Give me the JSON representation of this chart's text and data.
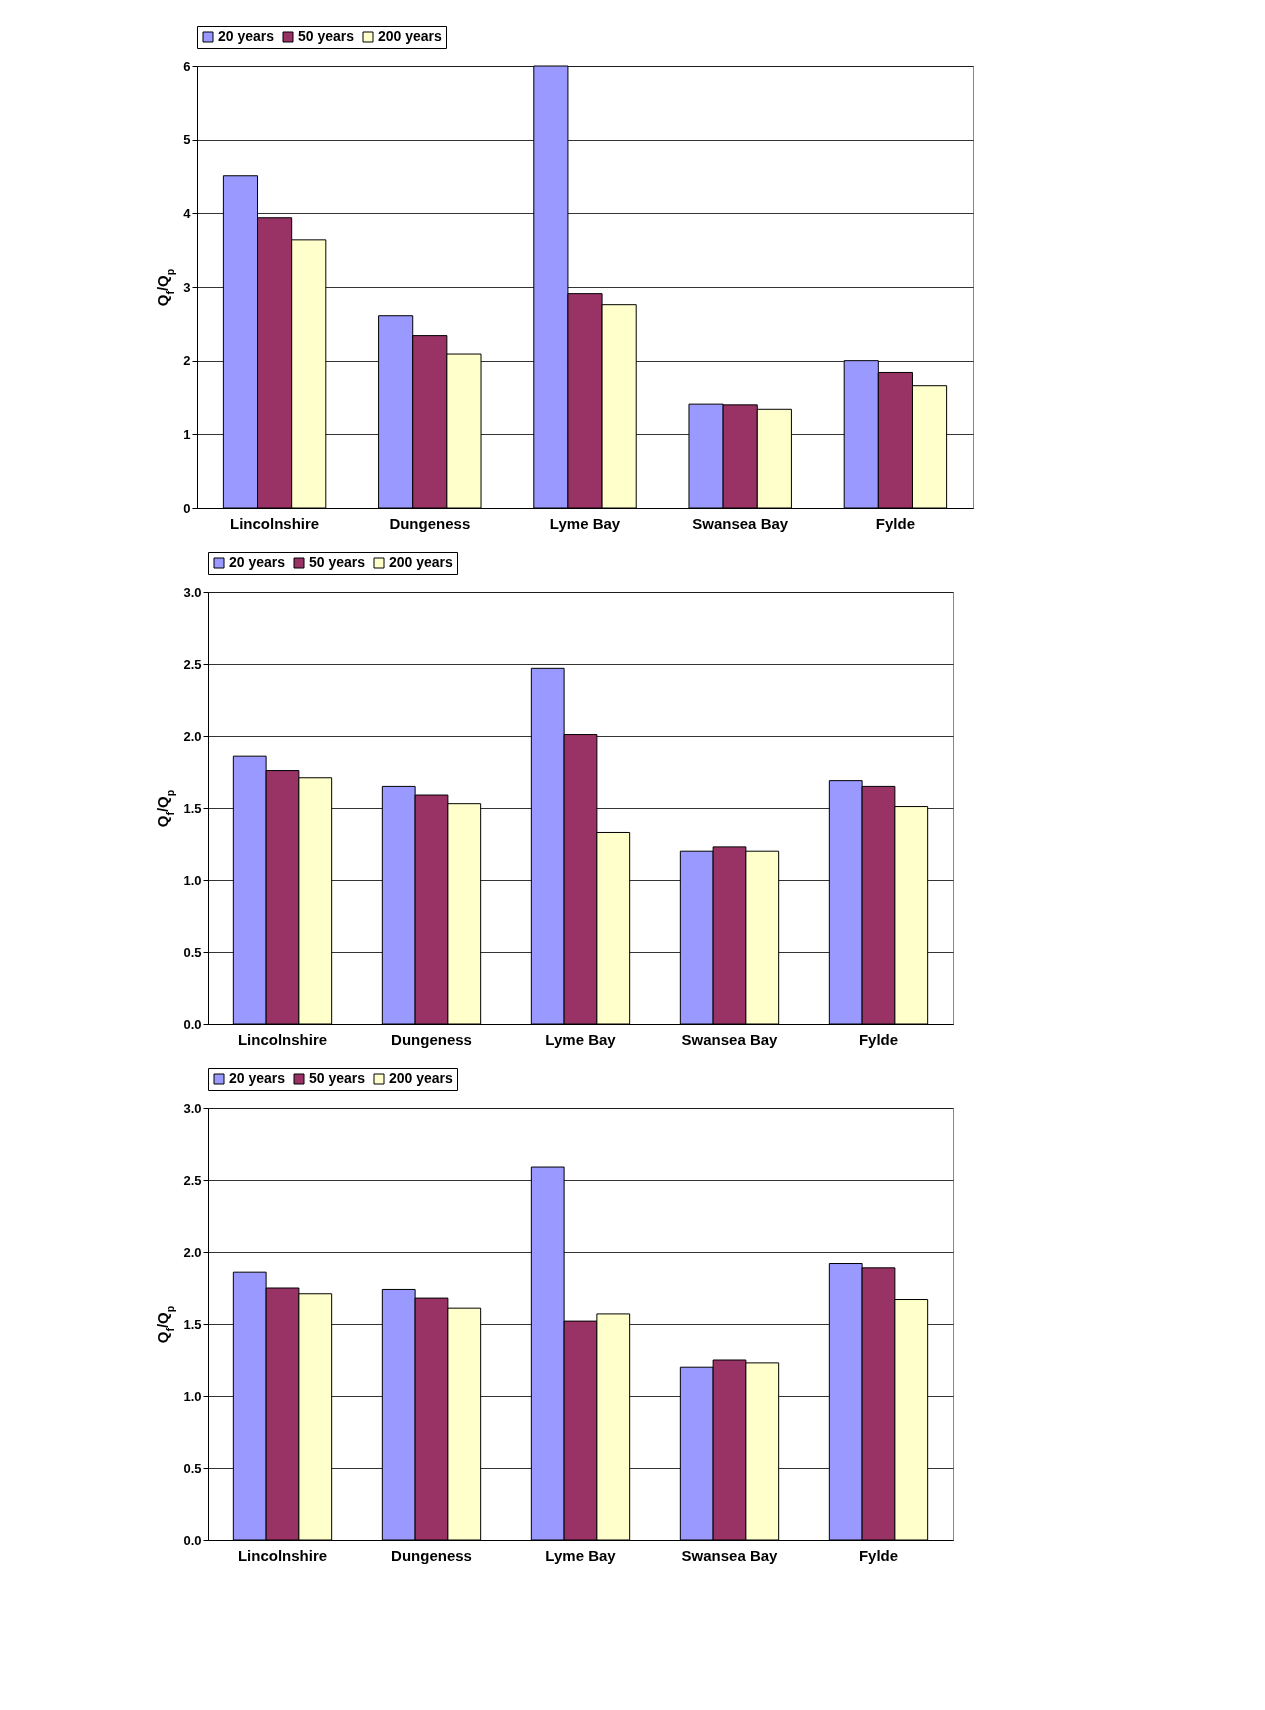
{
  "chart_data": [
    {
      "type": "bar",
      "ylabel": "Q$_{f}$/Q$_{p}$",
      "categories": [
        "Lincolnshire",
        "Dungeness",
        "Lyme Bay",
        "Swansea Bay",
        "Fylde"
      ],
      "series": [
        {
          "name": "20 years",
          "color": "#9999ff",
          "values": [
            4.51,
            2.61,
            6.0,
            1.41,
            2.0
          ]
        },
        {
          "name": "50 years",
          "color": "#993366",
          "values": [
            3.94,
            2.34,
            2.91,
            1.4,
            1.84
          ]
        },
        {
          "name": "200 years",
          "color": "#ffffcc",
          "values": [
            3.64,
            2.09,
            2.76,
            1.34,
            1.66
          ]
        }
      ],
      "ylim": [
        0,
        6
      ],
      "yticks": [
        0,
        1,
        2,
        3,
        4,
        5,
        6
      ],
      "grid": "y",
      "legend": "top"
    },
    {
      "type": "bar",
      "ylabel": "Q$_{f}$/Q$_{p}$",
      "categories": [
        "Lincolnshire",
        "Dungeness",
        "Lyme Bay",
        "Swansea Bay",
        "Fylde"
      ],
      "series": [
        {
          "name": "20 years",
          "color": "#9999ff",
          "values": [
            1.86,
            1.65,
            2.47,
            1.2,
            1.69
          ]
        },
        {
          "name": "50 years",
          "color": "#993366",
          "values": [
            1.76,
            1.59,
            2.01,
            1.23,
            1.65
          ]
        },
        {
          "name": "200 years",
          "color": "#ffffcc",
          "values": [
            1.71,
            1.53,
            1.33,
            1.2,
            1.51
          ]
        }
      ],
      "ylim": [
        0,
        3
      ],
      "yticks": [
        {
          "value": 0,
          "label": "0.0"
        },
        {
          "value": 0.5,
          "label": "0.5"
        },
        {
          "value": 1,
          "label": "1.0"
        },
        {
          "value": 1.5,
          "label": "1.5"
        },
        {
          "value": 2,
          "label": "2.0"
        },
        {
          "value": 2.5,
          "label": "2.5"
        },
        {
          "value": 3,
          "label": "3.0"
        }
      ],
      "grid": "y",
      "legend": "top"
    },
    {
      "type": "bar",
      "ylabel": "Q$_{f}$/Q$_{p}$",
      "categories": [
        "Lincolnshire",
        "Dungeness",
        "Lyme Bay",
        "Swansea Bay",
        "Fylde"
      ],
      "series": [
        {
          "name": "20 years",
          "color": "#9999ff",
          "values": [
            1.86,
            1.74,
            2.59,
            1.2,
            1.92
          ]
        },
        {
          "name": "50 years",
          "color": "#993366",
          "values": [
            1.75,
            1.68,
            1.52,
            1.25,
            1.89
          ]
        },
        {
          "name": "200 years",
          "color": "#ffffcc",
          "values": [
            1.71,
            1.61,
            1.57,
            1.23,
            1.67
          ]
        }
      ],
      "ylim": [
        0,
        3
      ],
      "yticks": [
        {
          "value": 0,
          "label": "0.0"
        },
        {
          "value": 0.5,
          "label": "0.5"
        },
        {
          "value": 1,
          "label": "1.0"
        },
        {
          "value": 1.5,
          "label": "1.5"
        },
        {
          "value": 2,
          "label": "2.0"
        },
        {
          "value": 2.5,
          "label": "2.5"
        },
        {
          "value": 3,
          "label": "3.0"
        }
      ],
      "grid": "y",
      "legend": "top"
    }
  ]
}
